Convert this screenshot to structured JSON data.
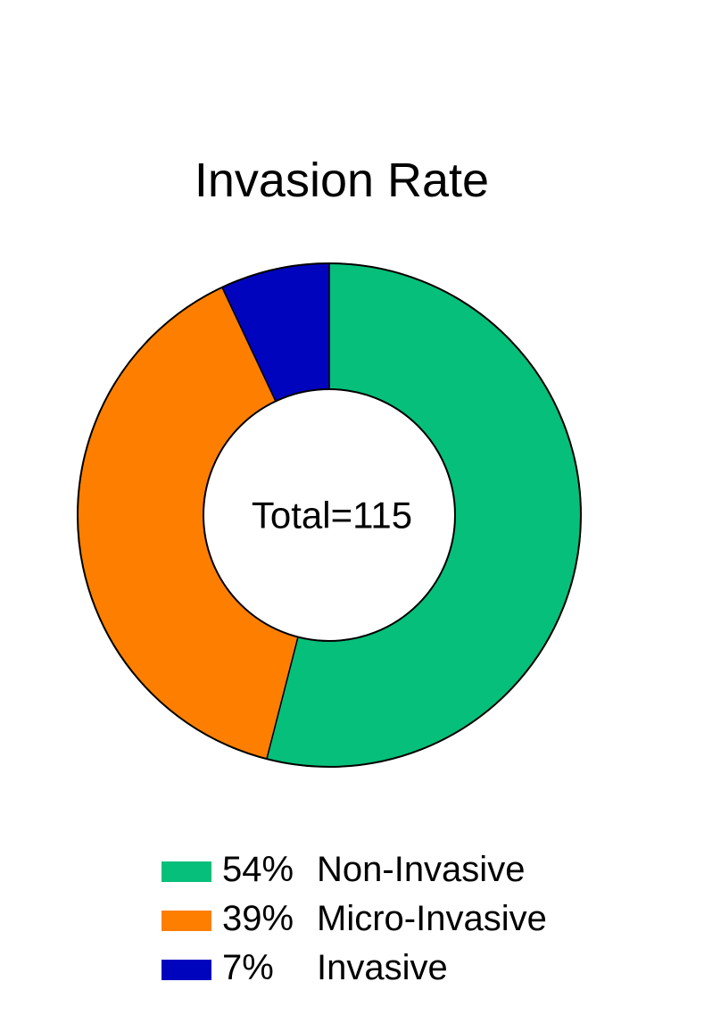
{
  "chart_data": {
    "type": "pie",
    "title": "Invasion Rate",
    "center_label": "Total=115",
    "donut": true,
    "legend_position": "bottom",
    "slices": [
      {
        "pct_label": "54%",
        "label": "Non-Invasive",
        "value": 54,
        "color": "#06bf7a"
      },
      {
        "pct_label": "39%",
        "label": "Micro-Invasive",
        "value": 39,
        "color": "#fe7f00"
      },
      {
        "pct_label": "7%",
        "label": "Invasive",
        "value": 7,
        "color": "#0005bd"
      }
    ]
  }
}
